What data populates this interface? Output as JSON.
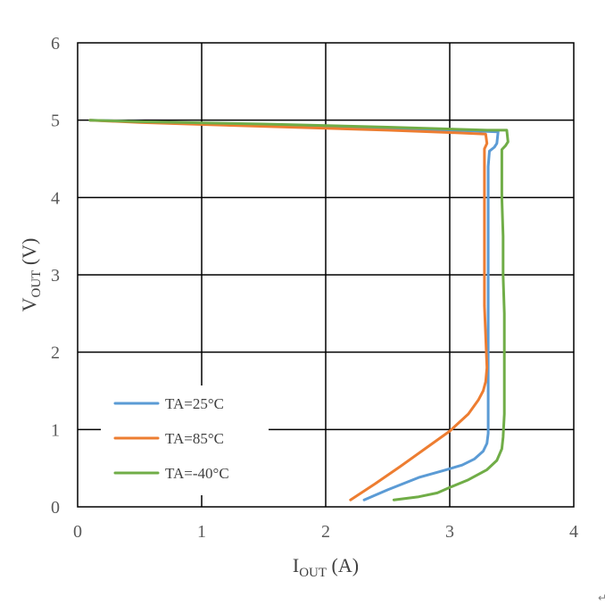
{
  "chart_data": {
    "type": "line",
    "xlabel_main": "I",
    "xlabel_sub": "OUT",
    "xlabel_unit": " (A)",
    "ylabel_main": "V",
    "ylabel_sub": "OUT",
    "ylabel_unit": " (V)",
    "xlim": [
      0,
      4
    ],
    "ylim": [
      0,
      6
    ],
    "x_ticks": [
      "0",
      "1",
      "2",
      "3",
      "4"
    ],
    "y_ticks": [
      "0",
      "1",
      "2",
      "3",
      "4",
      "5",
      "6"
    ],
    "grid": true,
    "legend_position": "bottom-left",
    "series": [
      {
        "name": "TA=25°C",
        "color": "#5B9BD5",
        "points": [
          [
            2.31,
            0.09
          ],
          [
            2.5,
            0.22
          ],
          [
            2.75,
            0.38
          ],
          [
            2.95,
            0.47
          ],
          [
            3.1,
            0.54
          ],
          [
            3.2,
            0.62
          ],
          [
            3.27,
            0.72
          ],
          [
            3.3,
            0.82
          ],
          [
            3.31,
            0.95
          ],
          [
            3.31,
            1.2
          ],
          [
            3.31,
            1.6
          ],
          [
            3.31,
            2.0
          ],
          [
            3.31,
            2.5
          ],
          [
            3.31,
            3.0
          ],
          [
            3.31,
            3.5
          ],
          [
            3.31,
            4.0
          ],
          [
            3.31,
            4.4
          ],
          [
            3.32,
            4.6
          ],
          [
            3.36,
            4.65
          ],
          [
            3.38,
            4.7
          ],
          [
            3.39,
            4.85
          ],
          [
            3.2,
            4.86
          ],
          [
            2.5,
            4.9
          ],
          [
            1.5,
            4.94
          ],
          [
            0.5,
            4.98
          ],
          [
            0.1,
            5.0
          ]
        ]
      },
      {
        "name": "TA=85°C",
        "color": "#ED7D31",
        "points": [
          [
            2.2,
            0.09
          ],
          [
            2.4,
            0.3
          ],
          [
            2.6,
            0.52
          ],
          [
            2.8,
            0.75
          ],
          [
            3.0,
            0.98
          ],
          [
            3.15,
            1.2
          ],
          [
            3.23,
            1.38
          ],
          [
            3.27,
            1.5
          ],
          [
            3.29,
            1.62
          ],
          [
            3.3,
            1.8
          ],
          [
            3.29,
            2.2
          ],
          [
            3.28,
            2.6
          ],
          [
            3.28,
            3.0
          ],
          [
            3.28,
            3.4
          ],
          [
            3.28,
            3.8
          ],
          [
            3.28,
            4.2
          ],
          [
            3.28,
            4.5
          ],
          [
            3.28,
            4.63
          ],
          [
            3.3,
            4.7
          ],
          [
            3.29,
            4.82
          ],
          [
            3.0,
            4.84
          ],
          [
            2.5,
            4.87
          ],
          [
            1.5,
            4.92
          ],
          [
            0.5,
            4.97
          ],
          [
            0.1,
            5.0
          ]
        ]
      },
      {
        "name": "TA=-40°C",
        "color": "#70AD47",
        "points": [
          [
            2.55,
            0.09
          ],
          [
            2.75,
            0.13
          ],
          [
            2.9,
            0.18
          ],
          [
            3.0,
            0.25
          ],
          [
            3.15,
            0.35
          ],
          [
            3.3,
            0.48
          ],
          [
            3.38,
            0.6
          ],
          [
            3.42,
            0.75
          ],
          [
            3.43,
            0.9
          ],
          [
            3.44,
            1.2
          ],
          [
            3.44,
            1.6
          ],
          [
            3.44,
            2.0
          ],
          [
            3.44,
            2.5
          ],
          [
            3.43,
            3.0
          ],
          [
            3.43,
            3.5
          ],
          [
            3.42,
            4.0
          ],
          [
            3.42,
            4.4
          ],
          [
            3.42,
            4.62
          ],
          [
            3.45,
            4.67
          ],
          [
            3.47,
            4.72
          ],
          [
            3.46,
            4.87
          ],
          [
            3.3,
            4.87
          ],
          [
            2.5,
            4.91
          ],
          [
            1.5,
            4.95
          ],
          [
            0.5,
            4.98
          ],
          [
            0.1,
            5.0
          ]
        ]
      }
    ]
  },
  "footer_mark": "↵"
}
